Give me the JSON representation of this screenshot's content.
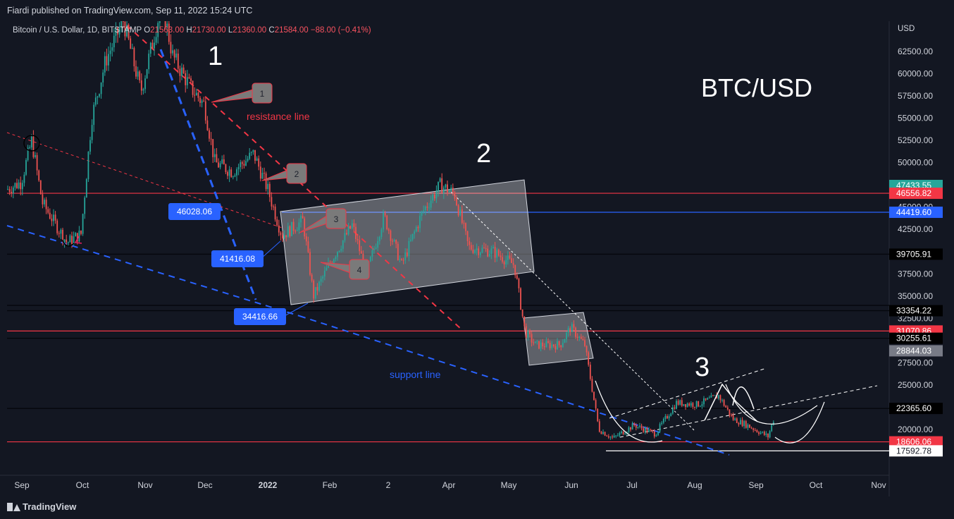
{
  "header": {
    "publisher": "Fiardi published on TradingView.com, Sep 11, 2022 15:24 UTC",
    "symbol": "Bitcoin / U.S. Dollar, 1D, BITSTAMP",
    "o_label": "O",
    "o_value": "21563.00",
    "h_label": "H",
    "h_value": "21730.00",
    "l_label": "L",
    "l_value": "21360.00",
    "c_label": "C",
    "c_value": "21584.00",
    "change": "−88.00 (−0.41%)"
  },
  "footer": {
    "brand": "TradingView"
  },
  "chart_data": {
    "type": "candlestick",
    "currency": "USD",
    "ylim": [
      15000,
      65000
    ],
    "y_ticks": [
      "62500.00",
      "60000.00",
      "57500.00",
      "55000.00",
      "52500.00",
      "50000.00",
      "45000.00",
      "42500.00",
      "37500.00",
      "35000.00",
      "32500.00",
      "27500.00",
      "25000.00",
      "20000.00"
    ],
    "x_ticks": [
      "Sep",
      "Oct",
      "Nov",
      "Dec",
      "2022",
      "Feb",
      "2",
      "Apr",
      "May",
      "Jun",
      "Jul",
      "Aug",
      "Sep",
      "Oct",
      "Nov"
    ],
    "price_levels": [
      {
        "label": "47433.55",
        "value": 47433.55,
        "color": "#26a69a"
      },
      {
        "label": "46556.82",
        "value": 46556.82,
        "color": "#f23645"
      },
      {
        "label": "44419.60",
        "value": 44419.6,
        "color": "#2962ff"
      },
      {
        "label": "39705.91",
        "value": 39705.91,
        "color": "#000000"
      },
      {
        "label": "33354.22",
        "value": 33354.22,
        "color": "#000000"
      },
      {
        "label": "31070.86",
        "value": 31070.86,
        "color": "#f23645"
      },
      {
        "label": "30255.61",
        "value": 30255.61,
        "color": "#000000"
      },
      {
        "label": "28844.03",
        "value": 28844.03,
        "color": "#787b86"
      },
      {
        "label": "22365.60",
        "value": 22365.6,
        "color": "#000000"
      },
      {
        "label": "18606.06",
        "value": 18606.06,
        "color": "#f23645"
      },
      {
        "label": "17592.78",
        "value": 17592.78,
        "color": "#ffffff"
      }
    ],
    "swing_labels": [
      {
        "label": "46028.06",
        "value": 46028.06
      },
      {
        "label": "41416.08",
        "value": 41416.08
      },
      {
        "label": "34416.66",
        "value": 34416.66
      }
    ],
    "annotations": {
      "wave_1": "1",
      "wave_2": "2",
      "wave_3": "3",
      "title": "BTC/USD",
      "resistance": "resistance line",
      "support": "support line",
      "callouts": [
        "1",
        "2",
        "3",
        "4"
      ]
    },
    "grid": false,
    "colors": {
      "up": "#26a69a",
      "down": "#ef5350",
      "background": "#131722",
      "support": "#2962ff",
      "resistance": "#f23645"
    }
  }
}
